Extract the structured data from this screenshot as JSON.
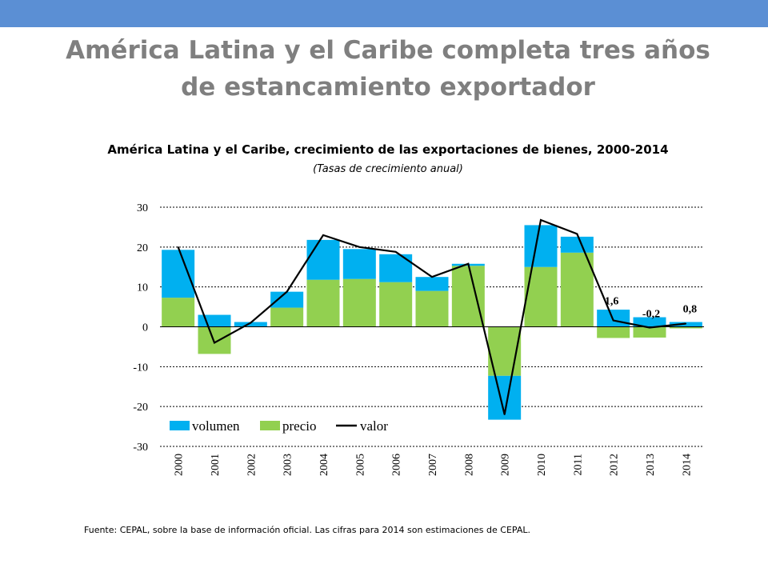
{
  "slide": {
    "title": "América Latina y el Caribe completa tres años de estancamiento exportador",
    "source": "Fuente: CEPAL, sobre la base de información oficial. Las cifras para 2014  son estimaciones de CEPAL."
  },
  "colors": {
    "header_bar": "#5b8fd4",
    "volumen": "#00b0f0",
    "precio": "#92d050",
    "valor": "#000000"
  },
  "chart_data": {
    "type": "bar",
    "stacked": true,
    "title": "América Latina y el Caribe, crecimiento de las exportaciones de bienes, 2000-2014",
    "subtitle": "(Tasas de crecimiento anual)",
    "categories": [
      "2000",
      "2001",
      "2002",
      "2003",
      "2004",
      "2005",
      "2006",
      "2007",
      "2008",
      "2009",
      "2010",
      "2011",
      "2012",
      "2013",
      "2014"
    ],
    "ylim": [
      -30,
      30
    ],
    "yticks": [
      "30",
      "20",
      "10",
      "0",
      "-10",
      "-20",
      "-30"
    ],
    "grid": true,
    "legend_position": "bottom-left",
    "series": [
      {
        "name": "volumen",
        "kind": "bar",
        "color": "#00b0f0",
        "values": [
          12,
          3,
          1.2,
          4,
          10,
          7.5,
          7,
          3.5,
          0.5,
          -11,
          10.5,
          4,
          4.3,
          2.4,
          1.2
        ]
      },
      {
        "name": "precio",
        "kind": "bar",
        "color": "#92d050",
        "values": [
          7.3,
          -6.8,
          0,
          4.8,
          11.8,
          12,
          11.2,
          9,
          15.3,
          -12.3,
          15,
          18.6,
          -2.8,
          -2.7,
          -0.4
        ]
      },
      {
        "name": "valor",
        "kind": "line",
        "color": "#000000",
        "values": [
          20,
          -4,
          1,
          8.8,
          23,
          20,
          18.8,
          12.5,
          15.8,
          -22,
          26.8,
          23.3,
          1.6,
          -0.2,
          0.8
        ]
      }
    ],
    "annotations": [
      {
        "category": "2012",
        "value": 1.6,
        "text": "1,6"
      },
      {
        "category": "2013",
        "value": -0.2,
        "text": "-0,2"
      },
      {
        "category": "2014",
        "value": 0.8,
        "text": "0,8"
      }
    ]
  }
}
